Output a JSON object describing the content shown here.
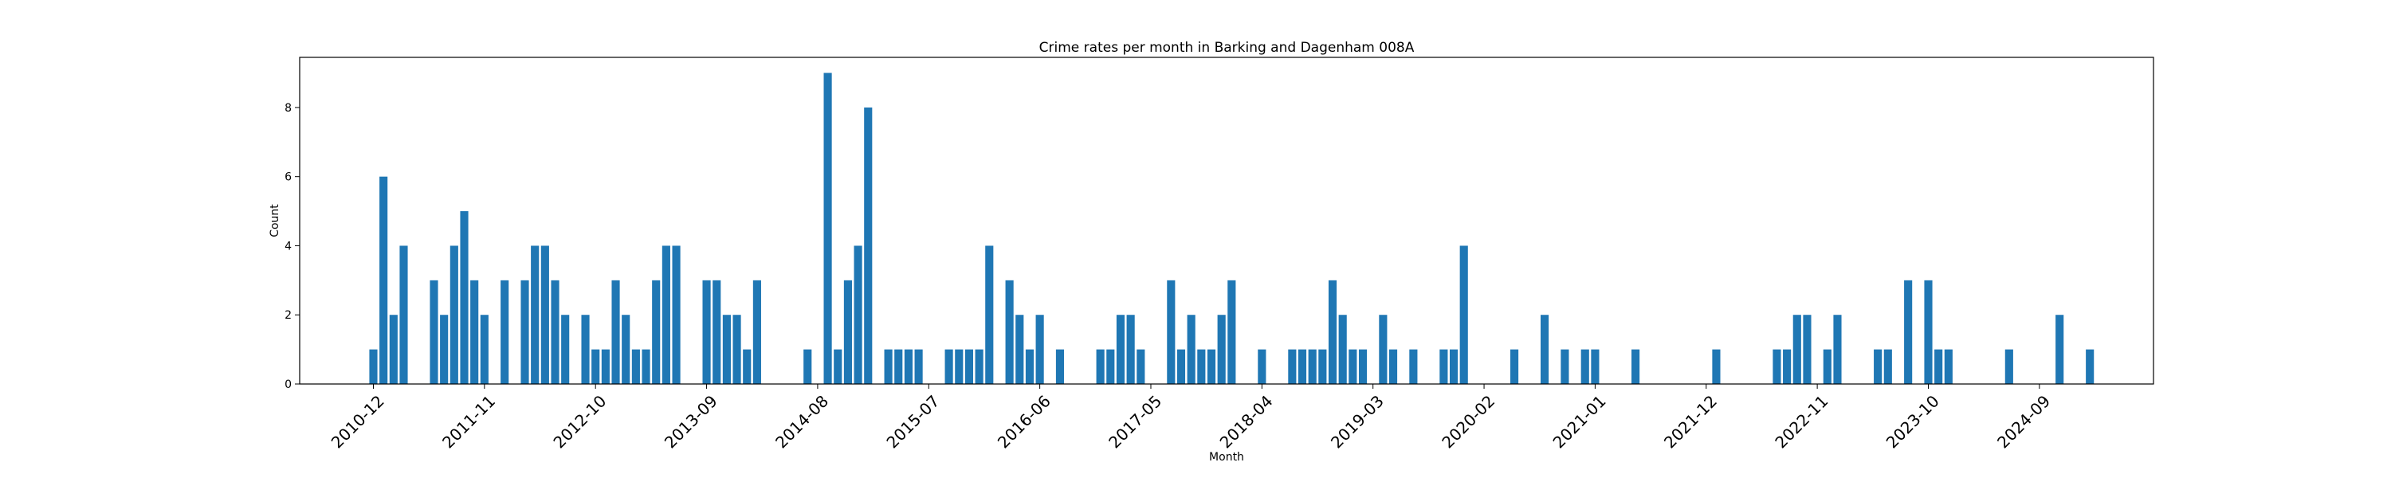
{
  "chart_data": {
    "type": "bar",
    "title": "Crime rates per month in Barking and Dagenham 008A",
    "xlabel": "Month",
    "ylabel": "Count",
    "ylim": [
      0,
      9.45
    ],
    "yticks": [
      0,
      2,
      4,
      6,
      8
    ],
    "xticks": [
      "2010-12",
      "2011-11",
      "2012-10",
      "2013-09",
      "2014-08",
      "2015-07",
      "2016-06",
      "2017-05",
      "2018-04",
      "2019-03",
      "2020-02",
      "2021-01",
      "2021-12",
      "2022-11",
      "2023-10",
      "2024-09"
    ],
    "color": "#1f77b4",
    "grid": false,
    "categories": [
      "2010-12",
      "2011-01",
      "2011-02",
      "2011-03",
      "2011-06",
      "2011-07",
      "2011-08",
      "2011-09",
      "2011-10",
      "2011-11",
      "2012-01",
      "2012-03",
      "2012-04",
      "2012-05",
      "2012-06",
      "2012-07",
      "2012-09",
      "2012-10",
      "2012-11",
      "2012-12",
      "2013-01",
      "2013-02",
      "2013-03",
      "2013-04",
      "2013-05",
      "2013-06",
      "2013-09",
      "2013-10",
      "2013-11",
      "2013-12",
      "2014-01",
      "2014-02",
      "2014-07",
      "2014-09",
      "2014-10",
      "2014-11",
      "2014-12",
      "2015-01",
      "2015-03",
      "2015-04",
      "2015-05",
      "2015-06",
      "2015-09",
      "2015-10",
      "2015-11",
      "2015-12",
      "2016-01",
      "2016-03",
      "2016-04",
      "2016-05",
      "2016-06",
      "2016-08",
      "2016-12",
      "2017-01",
      "2017-02",
      "2017-03",
      "2017-04",
      "2017-07",
      "2017-08",
      "2017-09",
      "2017-10",
      "2017-11",
      "2017-12",
      "2018-01",
      "2018-04",
      "2018-07",
      "2018-08",
      "2018-09",
      "2018-10",
      "2018-11",
      "2018-12",
      "2019-01",
      "2019-02",
      "2019-04",
      "2019-05",
      "2019-07",
      "2019-10",
      "2019-11",
      "2019-12",
      "2020-05",
      "2020-08",
      "2020-10",
      "2020-12",
      "2021-01",
      "2021-05",
      "2022-01",
      "2022-07",
      "2022-08",
      "2022-09",
      "2022-10",
      "2022-12",
      "2023-01",
      "2023-05",
      "2023-06",
      "2023-08",
      "2023-10",
      "2023-11",
      "2023-12",
      "2024-06",
      "2024-11",
      "2025-02"
    ],
    "values": [
      1,
      6,
      2,
      4,
      3,
      2,
      4,
      5,
      3,
      2,
      3,
      3,
      4,
      4,
      3,
      2,
      2,
      1,
      1,
      3,
      2,
      1,
      1,
      3,
      4,
      4,
      3,
      3,
      2,
      2,
      1,
      3,
      1,
      9,
      1,
      3,
      4,
      8,
      1,
      1,
      1,
      1,
      1,
      1,
      1,
      1,
      4,
      3,
      2,
      1,
      2,
      1,
      1,
      1,
      2,
      2,
      1,
      3,
      1,
      2,
      1,
      1,
      2,
      3,
      1,
      1,
      1,
      1,
      1,
      3,
      2,
      1,
      1,
      2,
      1,
      1,
      1,
      1,
      4,
      1,
      2,
      1,
      1,
      1,
      1,
      1,
      1,
      1,
      2,
      2,
      1,
      2,
      1,
      1,
      3,
      3,
      1,
      1,
      1,
      2,
      1
    ]
  }
}
